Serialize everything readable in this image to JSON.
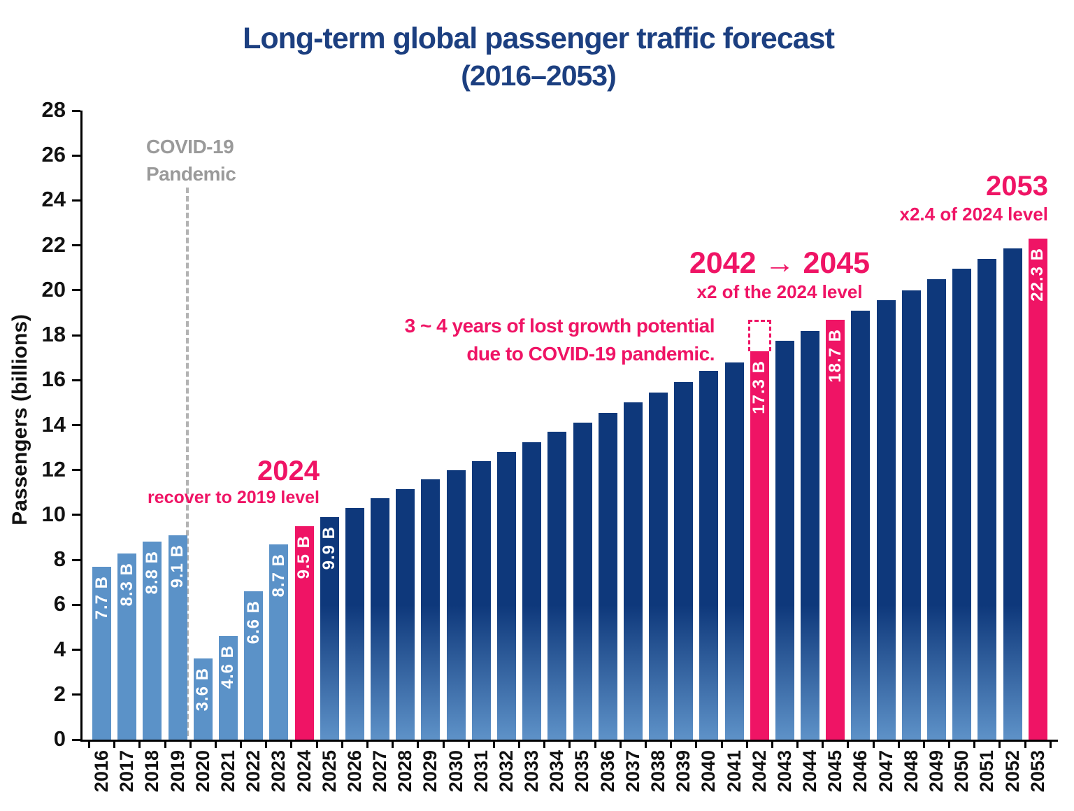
{
  "title": {
    "line1": "Long-term global passenger traffic forecast",
    "line2": "(2016–2053)"
  },
  "y_axis": {
    "label": "Passengers (billions)",
    "ticks": [
      0,
      2,
      4,
      6,
      8,
      10,
      12,
      14,
      16,
      18,
      20,
      22,
      24,
      26,
      28
    ]
  },
  "annotations": {
    "covid": {
      "line1": "COVID-19",
      "line2": "Pandemic"
    },
    "recovery": {
      "heading": "2024",
      "sub": "recover to 2019 level"
    },
    "lost_growth": {
      "line1": "3 ~ 4 years of lost growth potential",
      "line2": "due to COVID-19 pandemic."
    },
    "double_level": {
      "heading": "2042 → 2045",
      "sub": "x2 of the 2024 level"
    },
    "final_level": {
      "heading": "2053",
      "sub": "x2.4 of 2024 level"
    }
  },
  "colors": {
    "accent_pink": "#ef1465",
    "bar_history": "#5b92c8",
    "bar_forecast_top": "#0e387b",
    "bar_forecast_bottom": "#5e92c8",
    "title_navy": "#1c3f80",
    "covid_gray": "#9a9a9a",
    "axis_black": "#111111"
  },
  "chart_data": {
    "type": "bar",
    "title": "Long-term global passenger traffic forecast (2016–2053)",
    "xlabel": "",
    "ylabel": "Passengers (billions)",
    "ylim": [
      0,
      28
    ],
    "y_tick_step": 2,
    "grid": false,
    "legend": "none",
    "lost_growth_box": {
      "year": "2042",
      "from": 17.3,
      "to": 18.7
    },
    "bars": [
      {
        "year": "2016",
        "value": 7.7,
        "kind": "history",
        "label": "7.7 B"
      },
      {
        "year": "2017",
        "value": 8.3,
        "kind": "history",
        "label": "8.3 B"
      },
      {
        "year": "2018",
        "value": 8.8,
        "kind": "history",
        "label": "8.8 B"
      },
      {
        "year": "2019",
        "value": 9.1,
        "kind": "history",
        "label": "9.1 B"
      },
      {
        "year": "2020",
        "value": 3.6,
        "kind": "history",
        "label": "3.6 B"
      },
      {
        "year": "2021",
        "value": 4.6,
        "kind": "history",
        "label": "4.6 B"
      },
      {
        "year": "2022",
        "value": 6.6,
        "kind": "history",
        "label": "6.6 B"
      },
      {
        "year": "2023",
        "value": 8.7,
        "kind": "history",
        "label": "8.7 B"
      },
      {
        "year": "2024",
        "value": 9.5,
        "kind": "highlight",
        "label": "9.5 B"
      },
      {
        "year": "2025",
        "value": 9.9,
        "kind": "forecast",
        "label": "9.9 B"
      },
      {
        "year": "2026",
        "value": 10.3,
        "kind": "forecast",
        "label": null
      },
      {
        "year": "2027",
        "value": 10.75,
        "kind": "forecast",
        "label": null
      },
      {
        "year": "2028",
        "value": 11.15,
        "kind": "forecast",
        "label": null
      },
      {
        "year": "2029",
        "value": 11.6,
        "kind": "forecast",
        "label": null
      },
      {
        "year": "2030",
        "value": 12.0,
        "kind": "forecast",
        "label": null
      },
      {
        "year": "2031",
        "value": 12.4,
        "kind": "forecast",
        "label": null
      },
      {
        "year": "2032",
        "value": 12.8,
        "kind": "forecast",
        "label": null
      },
      {
        "year": "2033",
        "value": 13.25,
        "kind": "forecast",
        "label": null
      },
      {
        "year": "2034",
        "value": 13.7,
        "kind": "forecast",
        "label": null
      },
      {
        "year": "2035",
        "value": 14.1,
        "kind": "forecast",
        "label": null
      },
      {
        "year": "2036",
        "value": 14.55,
        "kind": "forecast",
        "label": null
      },
      {
        "year": "2037",
        "value": 15.0,
        "kind": "forecast",
        "label": null
      },
      {
        "year": "2038",
        "value": 15.45,
        "kind": "forecast",
        "label": null
      },
      {
        "year": "2039",
        "value": 15.9,
        "kind": "forecast",
        "label": null
      },
      {
        "year": "2040",
        "value": 16.4,
        "kind": "forecast",
        "label": null
      },
      {
        "year": "2041",
        "value": 16.8,
        "kind": "forecast",
        "label": null
      },
      {
        "year": "2042",
        "value": 17.3,
        "kind": "highlight",
        "label": "17.3 B"
      },
      {
        "year": "2043",
        "value": 17.75,
        "kind": "forecast",
        "label": null
      },
      {
        "year": "2044",
        "value": 18.2,
        "kind": "forecast",
        "label": null
      },
      {
        "year": "2045",
        "value": 18.7,
        "kind": "highlight",
        "label": "18.7 B"
      },
      {
        "year": "2046",
        "value": 19.1,
        "kind": "forecast",
        "label": null
      },
      {
        "year": "2047",
        "value": 19.55,
        "kind": "forecast",
        "label": null
      },
      {
        "year": "2048",
        "value": 20.0,
        "kind": "forecast",
        "label": null
      },
      {
        "year": "2049",
        "value": 20.5,
        "kind": "forecast",
        "label": null
      },
      {
        "year": "2050",
        "value": 20.95,
        "kind": "forecast",
        "label": null
      },
      {
        "year": "2051",
        "value": 21.4,
        "kind": "forecast",
        "label": null
      },
      {
        "year": "2052",
        "value": 21.85,
        "kind": "forecast",
        "label": null
      },
      {
        "year": "2053",
        "value": 22.3,
        "kind": "highlight",
        "label": "22.3 B"
      }
    ]
  }
}
